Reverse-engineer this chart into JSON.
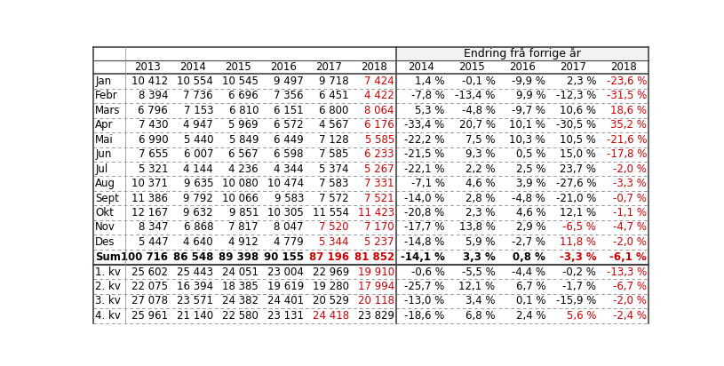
{
  "header_top": "Endring frå forrige år",
  "col_headers_left": [
    "",
    "2013",
    "2014",
    "2015",
    "2016",
    "2017",
    "2018"
  ],
  "col_headers_right": [
    "2014",
    "2015",
    "2016",
    "2017",
    "2018"
  ],
  "rows": [
    [
      "Jan",
      "10 412",
      "10 554",
      "10 545",
      "9 497",
      "9 718",
      "7 424",
      "1,4 %",
      "-0,1 %",
      "-9,9 %",
      "2,3 %",
      "-23,6 %"
    ],
    [
      "Febr",
      "8 394",
      "7 736",
      "6 696",
      "7 356",
      "6 451",
      "4 422",
      "-7,8 %",
      "-13,4 %",
      "9,9 %",
      "-12,3 %",
      "-31,5 %"
    ],
    [
      "Mars",
      "6 796",
      "7 153",
      "6 810",
      "6 151",
      "6 800",
      "8 064",
      "5,3 %",
      "-4,8 %",
      "-9,7 %",
      "10,6 %",
      "18,6 %"
    ],
    [
      "Apr",
      "7 430",
      "4 947",
      "5 969",
      "6 572",
      "4 567",
      "6 176",
      "-33,4 %",
      "20,7 %",
      "10,1 %",
      "-30,5 %",
      "35,2 %"
    ],
    [
      "Mai",
      "6 990",
      "5 440",
      "5 849",
      "6 449",
      "7 128",
      "5 585",
      "-22,2 %",
      "7,5 %",
      "10,3 %",
      "10,5 %",
      "-21,6 %"
    ],
    [
      "Jun",
      "7 655",
      "6 007",
      "6 567",
      "6 598",
      "7 585",
      "6 233",
      "-21,5 %",
      "9,3 %",
      "0,5 %",
      "15,0 %",
      "-17,8 %"
    ],
    [
      "Jul",
      "5 321",
      "4 144",
      "4 236",
      "4 344",
      "5 374",
      "5 267",
      "-22,1 %",
      "2,2 %",
      "2,5 %",
      "23,7 %",
      "-2,0 %"
    ],
    [
      "Aug",
      "10 371",
      "9 635",
      "10 080",
      "10 474",
      "7 583",
      "7 331",
      "-7,1 %",
      "4,6 %",
      "3,9 %",
      "-27,6 %",
      "-3,3 %"
    ],
    [
      "Sept",
      "11 386",
      "9 792",
      "10 066",
      "9 583",
      "7 572",
      "7 521",
      "-14,0 %",
      "2,8 %",
      "-4,8 %",
      "-21,0 %",
      "-0,7 %"
    ],
    [
      "Okt",
      "12 167",
      "9 632",
      "9 851",
      "10 305",
      "11 554",
      "11 423",
      "-20,8 %",
      "2,3 %",
      "4,6 %",
      "12,1 %",
      "-1,1 %"
    ],
    [
      "Nov",
      "8 347",
      "6 868",
      "7 817",
      "8 047",
      "7 520",
      "7 170",
      "-17,7 %",
      "13,8 %",
      "2,9 %",
      "-6,5 %",
      "-4,7 %"
    ],
    [
      "Des",
      "5 447",
      "4 640",
      "4 912",
      "4 779",
      "5 344",
      "5 237",
      "-14,8 %",
      "5,9 %",
      "-2,7 %",
      "11,8 %",
      "-2,0 %"
    ],
    [
      "Sum",
      "100 716",
      "86 548",
      "89 398",
      "90 155",
      "87 196",
      "81 852",
      "-14,1 %",
      "3,3 %",
      "0,8 %",
      "-3,3 %",
      "-6,1 %"
    ],
    [
      "1. kv",
      "25 602",
      "25 443",
      "24 051",
      "23 004",
      "22 969",
      "19 910",
      "-0,6 %",
      "-5,5 %",
      "-4,4 %",
      "-0,2 %",
      "-13,3 %"
    ],
    [
      "2. kv",
      "22 075",
      "16 394",
      "18 385",
      "19 619",
      "19 280",
      "17 994",
      "-25,7 %",
      "12,1 %",
      "6,7 %",
      "-1,7 %",
      "-6,7 %"
    ],
    [
      "3. kv",
      "27 078",
      "23 571",
      "24 382",
      "24 401",
      "20 529",
      "20 118",
      "-13,0 %",
      "3,4 %",
      "0,1 %",
      "-15,9 %",
      "-2,0 %"
    ],
    [
      "4. kv",
      "25 961",
      "21 140",
      "22 580",
      "23 131",
      "24 418",
      "23 829",
      "-18,6 %",
      "6,8 %",
      "2,4 %",
      "5,6 %",
      "-2,4 %"
    ]
  ],
  "red_cells": {
    "Jan": [
      6,
      11
    ],
    "Febr": [
      6,
      11
    ],
    "Mars": [
      6,
      11
    ],
    "Apr": [
      6,
      11
    ],
    "Mai": [
      6,
      11
    ],
    "Jun": [
      6,
      11
    ],
    "Jul": [
      6,
      11
    ],
    "Aug": [
      6,
      11
    ],
    "Sept": [
      6,
      11
    ],
    "Okt": [
      6,
      11
    ],
    "Nov": [
      5,
      6,
      10,
      11
    ],
    "Des": [
      5,
      6,
      10,
      11
    ],
    "Sum": [
      5,
      6,
      10,
      11
    ],
    "1. kv": [
      6,
      11
    ],
    "2. kv": [
      6,
      11
    ],
    "3. kv": [
      6,
      11
    ],
    "4. kv": [
      5,
      10,
      11
    ]
  },
  "bold_rows": [
    "Sum"
  ],
  "bg_color": "#ffffff",
  "red_color": "#cc0000",
  "black_color": "#000000",
  "line_color": "#999999",
  "thick_line_color": "#444444",
  "header_bg_color": "#f2f2f2"
}
